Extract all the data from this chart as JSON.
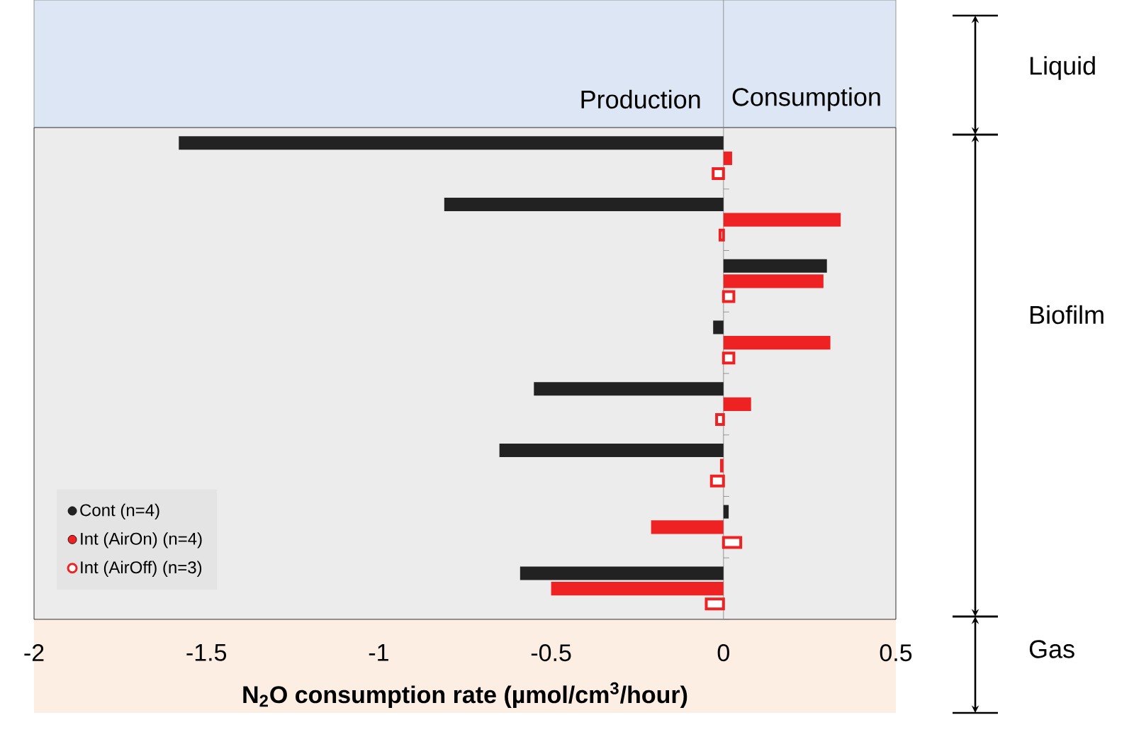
{
  "chart_data": {
    "type": "bar",
    "orientation": "horizontal",
    "categories": [
      null,
      null,
      null,
      null,
      null,
      null,
      null,
      null
    ],
    "series": [
      {
        "name": "Cont (n=4)",
        "color": "#222222",
        "values": [
          -1.58,
          -0.81,
          0.3,
          -0.03,
          -0.55,
          -0.65,
          0.015,
          -0.59
        ]
      },
      {
        "name": "Int (AirOn) (n=4)",
        "color": "#ee2222",
        "values": [
          0.025,
          0.34,
          0.29,
          0.31,
          0.08,
          -0.01,
          -0.21,
          -0.5
        ]
      },
      {
        "name": "Int (AirOff) (n=3)",
        "color": "#ee2222",
        "values": [
          -0.03,
          -0.01,
          0.03,
          0.03,
          -0.02,
          -0.035,
          0.05,
          -0.05
        ]
      }
    ],
    "xlim": [
      -2,
      0.5
    ],
    "xticks": [
      -2,
      -1.5,
      -1,
      -0.5,
      0,
      0.5
    ],
    "xlabel": "N$_{2}$O consumption rate (µmol/cm$^{3}$/hour)",
    "annotations": [
      "Production",
      "Consumption",
      "Liquid",
      "Biofilm",
      "Gas"
    ],
    "legend": "bottom left",
    "tick_labels": "x"
  }
}
